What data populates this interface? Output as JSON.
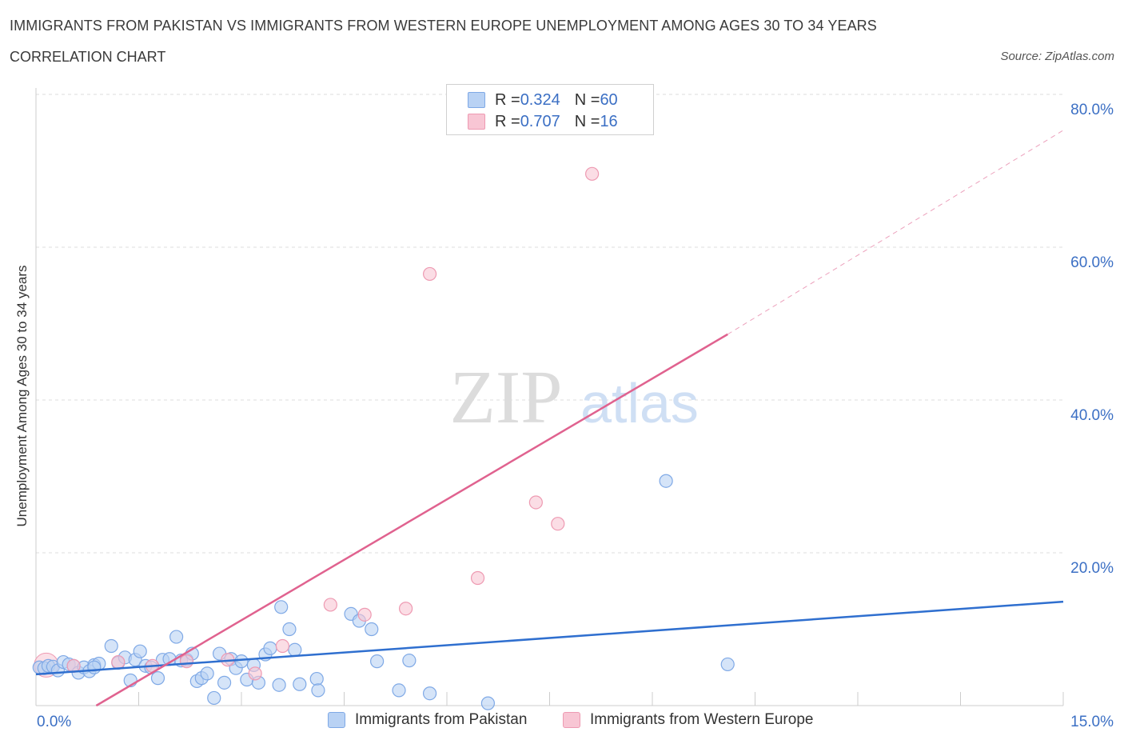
{
  "title": "IMMIGRANTS FROM PAKISTAN VS IMMIGRANTS FROM WESTERN EUROPE UNEMPLOYMENT AMONG AGES 30 TO 34 YEARS",
  "subtitle": "CORRELATION CHART",
  "source": "Source: ZipAtlas.com",
  "watermark": {
    "zip": "ZIP",
    "atlas": "atlas"
  },
  "legend_top": {
    "rows": [
      {
        "r_label": "R = ",
        "r_value": "0.324",
        "n_label": "N = ",
        "n_value": "60"
      },
      {
        "r_label": "R = ",
        "r_value": "0.707",
        "n_label": "N = ",
        "n_value": "16"
      }
    ]
  },
  "chart_data": {
    "type": "scatter",
    "title": "IMMIGRANTS FROM PAKISTAN VS IMMIGRANTS FROM WESTERN EUROPE UNEMPLOYMENT AMONG AGES 30 TO 34 YEARS",
    "xlabel": "",
    "ylabel": "Unemployment Among Ages 30 to 34 years",
    "xlim": [
      0,
      15
    ],
    "ylim": [
      0,
      80
    ],
    "x_tick_labels": [
      "0.0%",
      "15.0%"
    ],
    "y_tick_labels": [
      "20.0%",
      "40.0%",
      "60.0%",
      "80.0%"
    ],
    "y_ticks": [
      20,
      40,
      60,
      80
    ],
    "grid": true,
    "colors": {
      "pakistan_fill": "#b9d2f4",
      "pakistan_stroke": "#7fa9e6",
      "pakistan_line": "#2f6fcf",
      "we_fill": "#f8c6d4",
      "we_stroke": "#ee9ab2",
      "we_line": "#e0628f",
      "axis_label": "#3b6fc4"
    },
    "series": [
      {
        "name": "Immigrants from Pakistan",
        "r": 0.324,
        "n": 60,
        "points": [
          {
            "x": 0.05,
            "y": 5.0
          },
          {
            "x": 0.12,
            "y": 4.9
          },
          {
            "x": 0.18,
            "y": 5.2
          },
          {
            "x": 0.25,
            "y": 5.1
          },
          {
            "x": 0.32,
            "y": 4.6
          },
          {
            "x": 0.4,
            "y": 5.7
          },
          {
            "x": 0.48,
            "y": 5.4
          },
          {
            "x": 0.55,
            "y": 5.2
          },
          {
            "x": 0.62,
            "y": 4.3
          },
          {
            "x": 0.7,
            "y": 5.0
          },
          {
            "x": 0.78,
            "y": 4.5
          },
          {
            "x": 0.85,
            "y": 5.3
          },
          {
            "x": 0.92,
            "y": 5.5
          },
          {
            "x": 1.1,
            "y": 7.8
          },
          {
            "x": 1.2,
            "y": 5.6
          },
          {
            "x": 1.3,
            "y": 6.3
          },
          {
            "x": 1.38,
            "y": 3.3
          },
          {
            "x": 1.45,
            "y": 6.0
          },
          {
            "x": 1.52,
            "y": 7.1
          },
          {
            "x": 1.6,
            "y": 5.2
          },
          {
            "x": 1.68,
            "y": 5.0
          },
          {
            "x": 1.78,
            "y": 3.6
          },
          {
            "x": 1.85,
            "y": 6.0
          },
          {
            "x": 1.95,
            "y": 6.1
          },
          {
            "x": 2.05,
            "y": 9.0
          },
          {
            "x": 2.12,
            "y": 5.9
          },
          {
            "x": 2.2,
            "y": 6.0
          },
          {
            "x": 2.28,
            "y": 6.8
          },
          {
            "x": 2.35,
            "y": 3.2
          },
          {
            "x": 2.42,
            "y": 3.6
          },
          {
            "x": 2.5,
            "y": 4.2
          },
          {
            "x": 2.6,
            "y": 1.0
          },
          {
            "x": 2.68,
            "y": 6.8
          },
          {
            "x": 2.75,
            "y": 3.0
          },
          {
            "x": 2.85,
            "y": 6.1
          },
          {
            "x": 2.92,
            "y": 4.9
          },
          {
            "x": 3.0,
            "y": 5.8
          },
          {
            "x": 3.08,
            "y": 3.4
          },
          {
            "x": 3.18,
            "y": 5.3
          },
          {
            "x": 3.25,
            "y": 3.0
          },
          {
            "x": 3.35,
            "y": 6.7
          },
          {
            "x": 3.42,
            "y": 7.5
          },
          {
            "x": 3.55,
            "y": 2.7
          },
          {
            "x": 3.58,
            "y": 12.9
          },
          {
            "x": 3.7,
            "y": 10.0
          },
          {
            "x": 3.78,
            "y": 7.3
          },
          {
            "x": 3.85,
            "y": 2.8
          },
          {
            "x": 4.1,
            "y": 3.5
          },
          {
            "x": 4.12,
            "y": 2.0
          },
          {
            "x": 4.6,
            "y": 12.0
          },
          {
            "x": 4.72,
            "y": 11.1
          },
          {
            "x": 4.9,
            "y": 10.0
          },
          {
            "x": 4.98,
            "y": 5.8
          },
          {
            "x": 5.3,
            "y": 2.0
          },
          {
            "x": 5.45,
            "y": 5.9
          },
          {
            "x": 5.75,
            "y": 1.6
          },
          {
            "x": 6.6,
            "y": 0.3
          },
          {
            "x": 9.2,
            "y": 29.4
          },
          {
            "x": 10.1,
            "y": 5.4
          },
          {
            "x": 0.85,
            "y": 5.0
          }
        ],
        "trend": {
          "x0": 0.0,
          "y0": 4.1,
          "x1": 15.0,
          "y1": 13.6
        }
      },
      {
        "name": "Immigrants from Western Europe",
        "r": 0.707,
        "n": 16,
        "points": [
          {
            "x": 0.15,
            "y": 5.3
          },
          {
            "x": 0.55,
            "y": 5.2
          },
          {
            "x": 1.2,
            "y": 5.7
          },
          {
            "x": 1.7,
            "y": 5.2
          },
          {
            "x": 2.2,
            "y": 5.8
          },
          {
            "x": 2.8,
            "y": 6.0
          },
          {
            "x": 3.2,
            "y": 4.2
          },
          {
            "x": 3.6,
            "y": 7.8
          },
          {
            "x": 4.3,
            "y": 13.2
          },
          {
            "x": 4.8,
            "y": 11.9
          },
          {
            "x": 5.4,
            "y": 12.7
          },
          {
            "x": 5.75,
            "y": 56.5
          },
          {
            "x": 6.45,
            "y": 16.7
          },
          {
            "x": 7.3,
            "y": 26.6
          },
          {
            "x": 7.62,
            "y": 23.8
          },
          {
            "x": 8.12,
            "y": 69.6
          }
        ],
        "trend": {
          "x0": 0.88,
          "y0": 0.0,
          "x1": 10.1,
          "y1": 48.6
        },
        "trend_extension": {
          "x0": 10.1,
          "y0": 48.6,
          "x1": 15.0,
          "y1": 75.3
        }
      }
    ]
  },
  "legend_bottom": [
    {
      "label": "Immigrants from Pakistan"
    },
    {
      "label": "Immigrants from Western Europe"
    }
  ]
}
